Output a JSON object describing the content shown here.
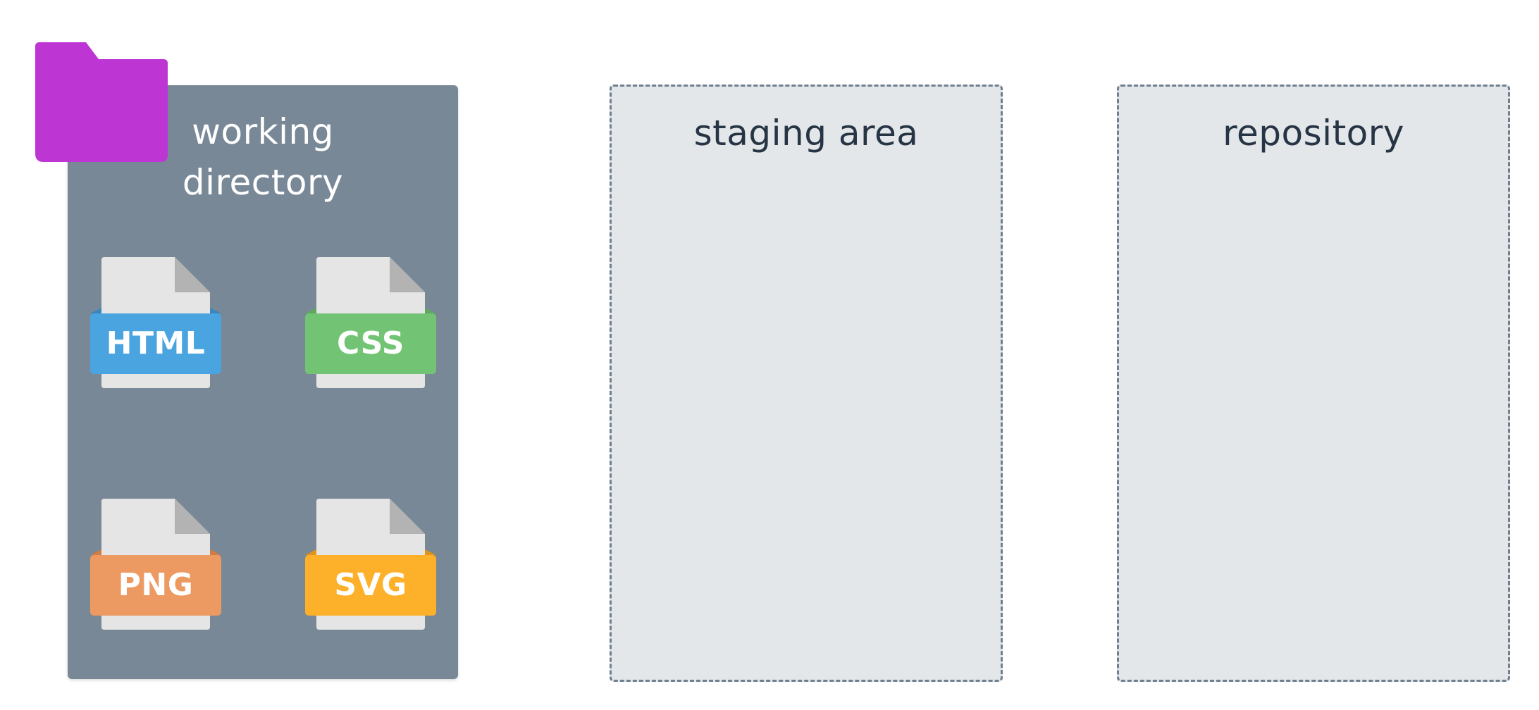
{
  "panels": {
    "working_directory": {
      "label": "working\ndirectory"
    },
    "staging_area": {
      "label": "staging area"
    },
    "repository": {
      "label": "repository"
    }
  },
  "files": [
    {
      "label": "HTML",
      "color": "#49a4e0",
      "color_dark": "#3a87bd"
    },
    {
      "label": "CSS",
      "color": "#72c474",
      "color_dark": "#5ea85f"
    },
    {
      "label": "PNG",
      "color": "#ec9a62",
      "color_dark": "#d17c44"
    },
    {
      "label": "SVG",
      "color": "#fdb029",
      "color_dark": "#e0951a"
    }
  ],
  "colors": {
    "folder": "#bd35d3",
    "working_panel": "#788896",
    "dashed_panel_bg": "#e3e7ea",
    "dashed_border": "#6f7f8f",
    "text_dark": "#263444",
    "paper": "#e5e5e5",
    "paper_fold": "#b3b3b3"
  }
}
